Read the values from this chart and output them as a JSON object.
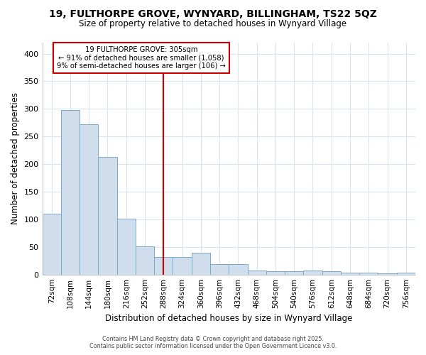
{
  "title1": "19, FULTHORPE GROVE, WYNYARD, BILLINGHAM, TS22 5QZ",
  "title2": "Size of property relative to detached houses in Wynyard Village",
  "xlabel": "Distribution of detached houses by size in Wynyard Village",
  "ylabel": "Number of detached properties",
  "footer1": "Contains HM Land Registry data © Crown copyright and database right 2025.",
  "footer2": "Contains public sector information licensed under the Open Government Licence v3.0.",
  "bin_edges": [
    72,
    108,
    144,
    180,
    216,
    252,
    288,
    324,
    360,
    396,
    432,
    468,
    504,
    540,
    576,
    612,
    648,
    684,
    720,
    756,
    792
  ],
  "bar_heights": [
    110,
    298,
    272,
    213,
    101,
    51,
    32,
    32,
    40,
    19,
    19,
    7,
    6,
    6,
    7,
    6,
    4,
    3,
    2,
    3
  ],
  "bar_color": "#cfdded",
  "bar_edgecolor": "#7aaac8",
  "bg_color": "#ffffff",
  "grid_color": "#d8e4f0",
  "red_line_x": 305,
  "annotation_line1": "19 FULTHORPE GROVE: 305sqm",
  "annotation_line2": "← 91% of detached houses are smaller (1,058)",
  "annotation_line3": "9% of semi-detached houses are larger (106) →",
  "ylim": [
    0,
    420
  ],
  "yticks": [
    0,
    50,
    100,
    150,
    200,
    250,
    300,
    350,
    400
  ]
}
